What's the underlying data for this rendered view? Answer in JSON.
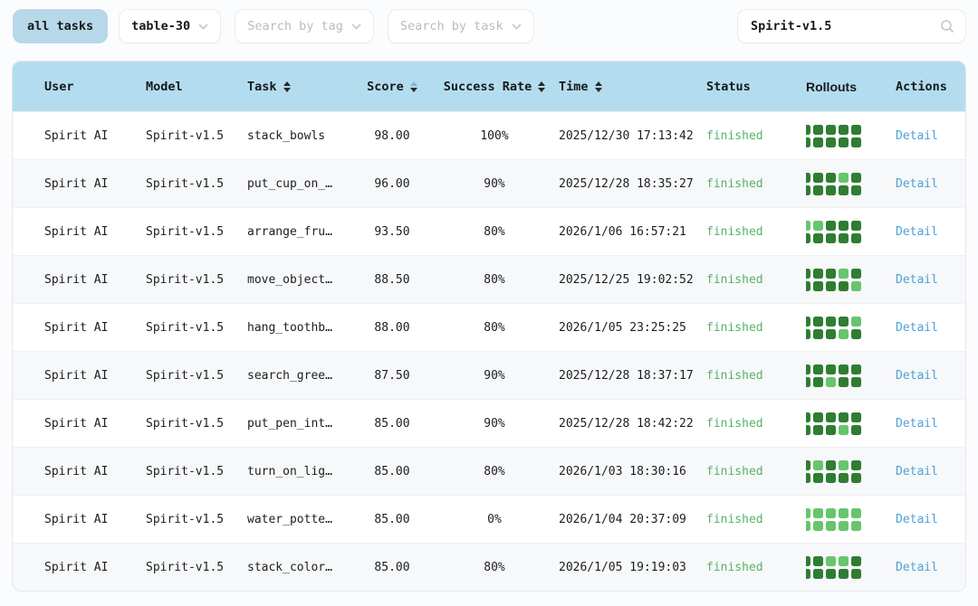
{
  "toolbar": {
    "all_tasks_label": "all tasks",
    "table_select_value": "table-30",
    "tag_select_placeholder": "Search by tag",
    "task_select_placeholder": "Search by task",
    "search_value": "Spirit-v1.5"
  },
  "table": {
    "columns": {
      "user": "User",
      "model": "Model",
      "task": "Task",
      "score": "Score",
      "success_rate": "Success Rate",
      "time": "Time",
      "status": "Status",
      "rollouts": "Rollouts",
      "actions": "Actions"
    },
    "rows": [
      {
        "user": "Spirit AI",
        "model": "Spirit-v1.5",
        "task": "stack_bowls",
        "score": "98.00",
        "success_rate": "100%",
        "time": "2025/12/30 17:13:42",
        "status": "finished",
        "rollouts": [
          1,
          1,
          1,
          1,
          1,
          1,
          1,
          1,
          1,
          1
        ],
        "action": "Detail"
      },
      {
        "user": "Spirit AI",
        "model": "Spirit-v1.5",
        "task": "put_cup_on_…",
        "score": "96.00",
        "success_rate": "90%",
        "time": "2025/12/28 18:35:27",
        "status": "finished",
        "rollouts": [
          1,
          1,
          1,
          0,
          1,
          1,
          1,
          1,
          1,
          1
        ],
        "action": "Detail"
      },
      {
        "user": "Spirit AI",
        "model": "Spirit-v1.5",
        "task": "arrange_fru…",
        "score": "93.50",
        "success_rate": "80%",
        "time": "2026/1/06 16:57:21",
        "status": "finished",
        "rollouts": [
          0,
          0,
          1,
          1,
          1,
          1,
          1,
          1,
          1,
          1
        ],
        "action": "Detail"
      },
      {
        "user": "Spirit AI",
        "model": "Spirit-v1.5",
        "task": "move_object…",
        "score": "88.50",
        "success_rate": "80%",
        "time": "2025/12/25 19:02:52",
        "status": "finished",
        "rollouts": [
          1,
          1,
          1,
          0,
          1,
          1,
          1,
          1,
          1,
          0
        ],
        "action": "Detail"
      },
      {
        "user": "Spirit AI",
        "model": "Spirit-v1.5",
        "task": "hang_toothb…",
        "score": "88.00",
        "success_rate": "80%",
        "time": "2026/1/05 23:25:25",
        "status": "finished",
        "rollouts": [
          1,
          1,
          1,
          1,
          0,
          1,
          1,
          1,
          0,
          1
        ],
        "action": "Detail"
      },
      {
        "user": "Spirit AI",
        "model": "Spirit-v1.5",
        "task": "search_gree…",
        "score": "87.50",
        "success_rate": "90%",
        "time": "2025/12/28 18:37:17",
        "status": "finished",
        "rollouts": [
          1,
          1,
          1,
          1,
          1,
          1,
          1,
          0,
          1,
          1
        ],
        "action": "Detail"
      },
      {
        "user": "Spirit AI",
        "model": "Spirit-v1.5",
        "task": "put_pen_int…",
        "score": "85.00",
        "success_rate": "90%",
        "time": "2025/12/28 18:42:22",
        "status": "finished",
        "rollouts": [
          1,
          1,
          1,
          1,
          1,
          1,
          1,
          1,
          0,
          1
        ],
        "action": "Detail"
      },
      {
        "user": "Spirit AI",
        "model": "Spirit-v1.5",
        "task": "turn_on_lig…",
        "score": "85.00",
        "success_rate": "80%",
        "time": "2026/1/03 18:30:16",
        "status": "finished",
        "rollouts": [
          1,
          0,
          1,
          0,
          1,
          1,
          1,
          1,
          1,
          1
        ],
        "action": "Detail"
      },
      {
        "user": "Spirit AI",
        "model": "Spirit-v1.5",
        "task": "water_potte…",
        "score": "85.00",
        "success_rate": "0%",
        "time": "2026/1/04 20:37:09",
        "status": "finished",
        "rollouts": [
          0,
          0,
          0,
          0,
          0,
          0,
          0,
          0,
          0,
          0
        ],
        "action": "Detail"
      },
      {
        "user": "Spirit AI",
        "model": "Spirit-v1.5",
        "task": "stack_color…",
        "score": "85.00",
        "success_rate": "80%",
        "time": "2026/1/05 19:19:03",
        "status": "finished",
        "rollouts": [
          1,
          1,
          0,
          0,
          1,
          1,
          1,
          1,
          1,
          1
        ],
        "action": "Detail"
      }
    ]
  },
  "colors": {
    "header_bg": "#b3ddee",
    "chip_bg": "#b7d8e9",
    "status_finished": "#56b366",
    "detail_link": "#4da0d9",
    "rollout_success": "#2f7d33",
    "rollout_fail": "#67c56d"
  }
}
